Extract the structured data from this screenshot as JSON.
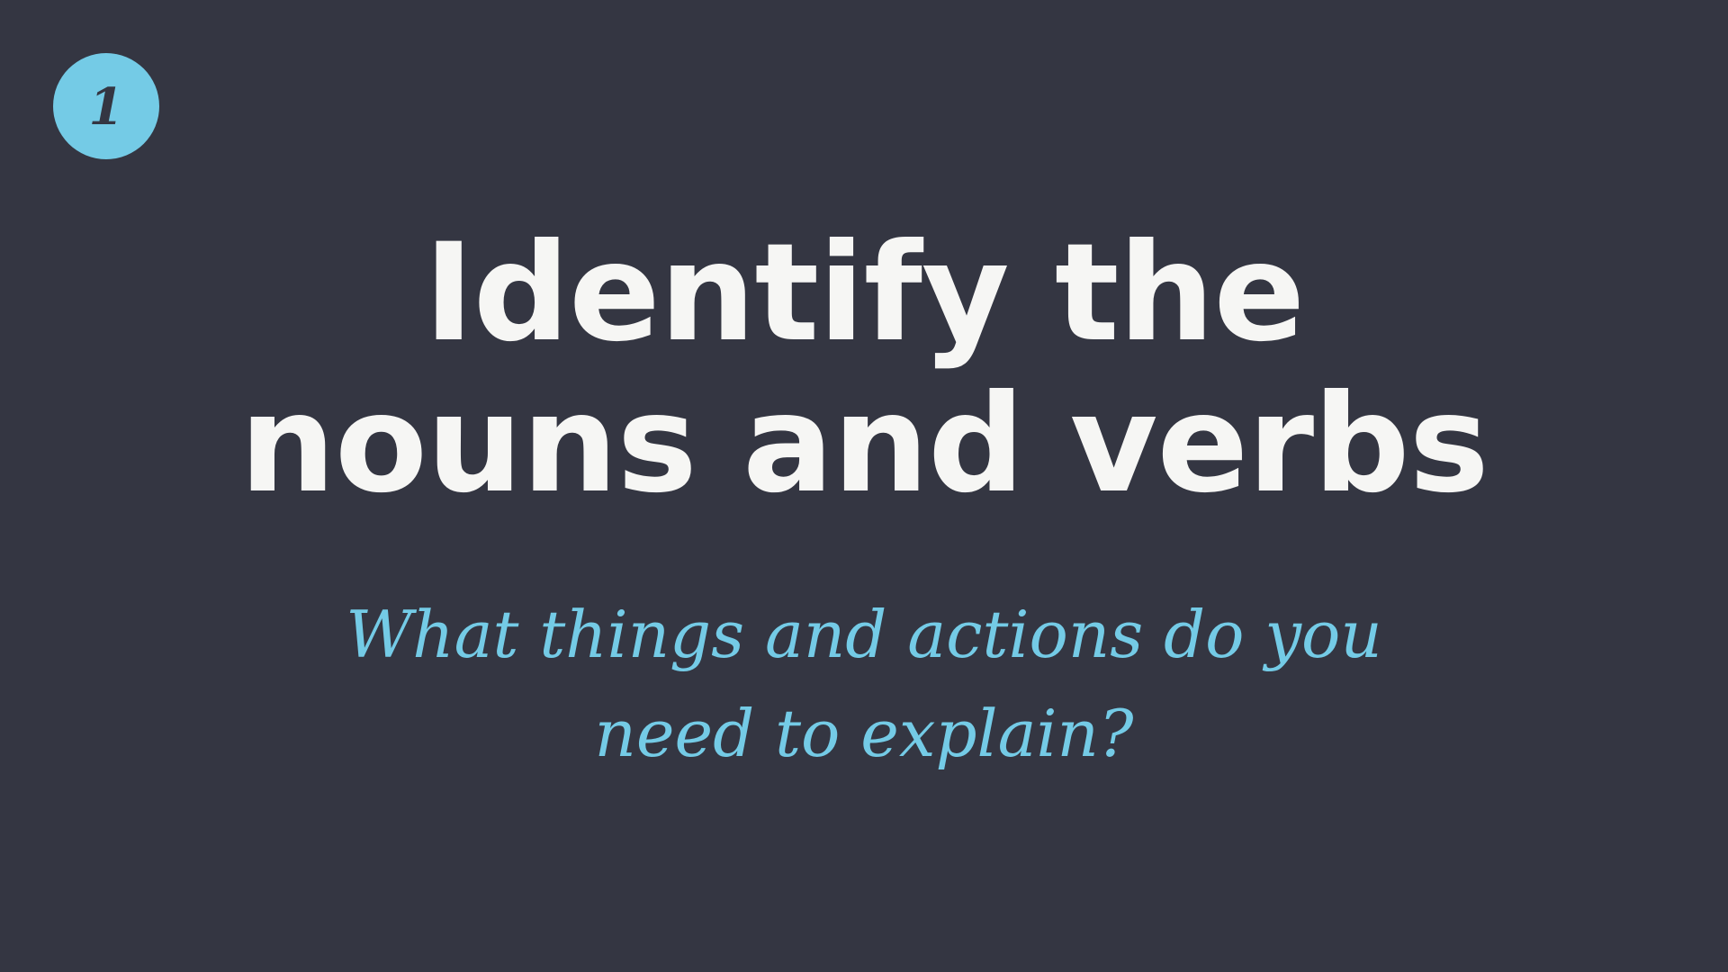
{
  "badge": {
    "number": "1",
    "color": "#74cbe6"
  },
  "title": {
    "line1": "Identify the",
    "line2": "nouns and verbs",
    "color": "#f6f6f4"
  },
  "subtitle": {
    "line1": "What things and actions do you",
    "line2": "need to explain?",
    "color": "#74cbe6"
  },
  "background_color": "#343642"
}
